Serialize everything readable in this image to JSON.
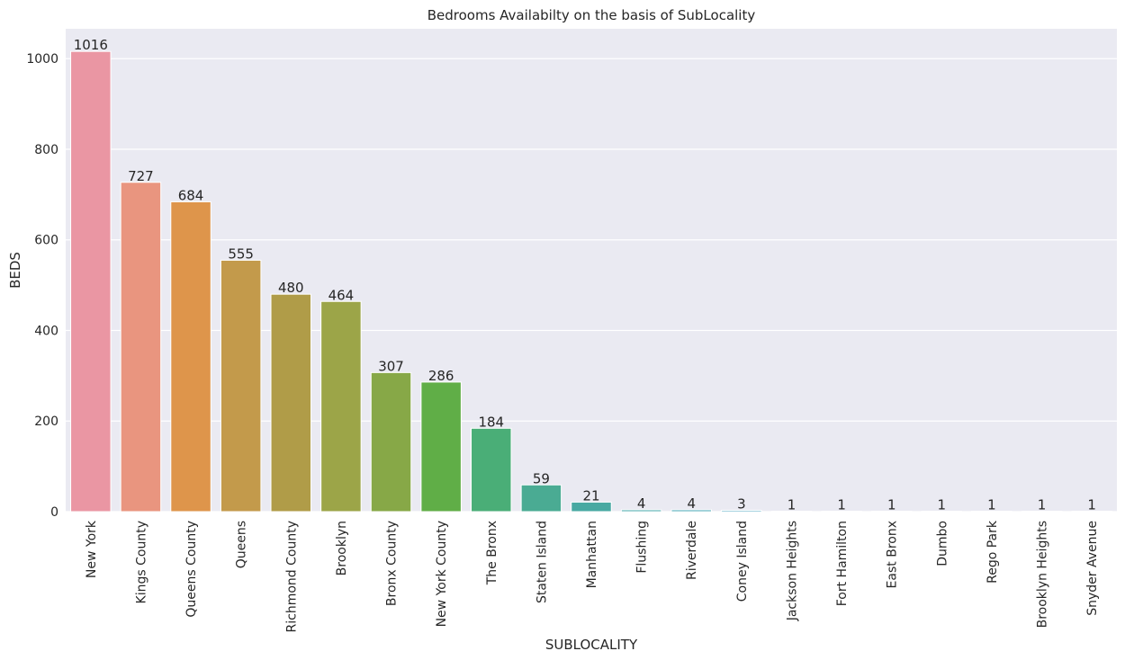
{
  "chart_data": {
    "type": "bar",
    "title": "Bedrooms Availabilty on the basis of SubLocality",
    "xlabel": "SUBLOCALITY",
    "ylabel": "BEDS",
    "categories": [
      "New York",
      "Kings County",
      "Queens County",
      "Queens",
      "Richmond County",
      "Brooklyn",
      "Bronx County",
      "New York County",
      "The Bronx",
      "Staten Island",
      "Manhattan",
      "Flushing",
      "Riverdale",
      "Coney Island",
      "Jackson Heights",
      "Fort Hamilton",
      "East Bronx",
      "Dumbo",
      "Rego Park",
      "Brooklyn Heights",
      "Snyder Avenue"
    ],
    "values": [
      1016,
      727,
      684,
      555,
      480,
      464,
      307,
      286,
      184,
      59,
      21,
      4,
      4,
      3,
      1,
      1,
      1,
      1,
      1,
      1,
      1
    ],
    "colors": [
      "#ea96a3",
      "#e9957f",
      "#de954b",
      "#c39a4b",
      "#b09c48",
      "#9ca548",
      "#87a847",
      "#60ae47",
      "#4aae77",
      "#4aab93",
      "#48a9a2",
      "#4aa9ac",
      "#4ba8b6",
      "#4da7c2",
      "#5da3d8",
      "#84a0e0",
      "#a798e3",
      "#c38ce3",
      "#db86d5",
      "#e789c3",
      "#ea8fb1"
    ],
    "yticks": [
      0,
      200,
      400,
      600,
      800,
      1000
    ],
    "ylim": [
      0,
      1066
    ],
    "grid": true,
    "background": "#eaeaf2"
  }
}
